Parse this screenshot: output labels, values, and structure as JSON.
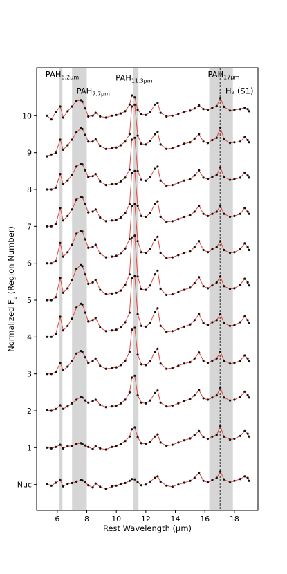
{
  "chart_data": {
    "type": "line",
    "xlabel": "Rest Wavelength (μm)",
    "ylabel_main": "Normalized F",
    "ylabel_sub": "ν",
    "ylabel_rest": " (Region Number)",
    "xlim": [
      4.6,
      19.6
    ],
    "ylim": [
      -0.7,
      11.3
    ],
    "xticks": [
      6,
      8,
      10,
      12,
      14,
      16,
      18
    ],
    "yticks": [
      {
        "value": 0,
        "label": "Nuc"
      },
      {
        "value": 1,
        "label": "1"
      },
      {
        "value": 2,
        "label": "2"
      },
      {
        "value": 3,
        "label": "3"
      },
      {
        "value": 4,
        "label": "4"
      },
      {
        "value": 5,
        "label": "5"
      },
      {
        "value": 6,
        "label": "6"
      },
      {
        "value": 7,
        "label": "7"
      },
      {
        "value": 8,
        "label": "8"
      },
      {
        "value": 9,
        "label": "9"
      },
      {
        "value": 10,
        "label": "10"
      }
    ],
    "bands": [
      {
        "main": "PAH",
        "sub": "6.2μm",
        "x0": 6.1,
        "x1": 6.35,
        "label_x": 5.2,
        "label_y": 11.05
      },
      {
        "main": "PAH",
        "sub": "7.7μm",
        "x0": 7.0,
        "x1": 8.0,
        "label_x": 7.3,
        "label_y": 10.6
      },
      {
        "main": "PAH",
        "sub": "11.3μm",
        "x0": 11.15,
        "x1": 11.5,
        "label_x": 9.95,
        "label_y": 10.95
      },
      {
        "main": "PAH",
        "sub": "17μm",
        "x0": 16.3,
        "x1": 17.9,
        "label_x": 16.2,
        "label_y": 11.05
      }
    ],
    "vline": {
      "x": 17.03,
      "label": "H₂ (S1)",
      "label_x": 17.3,
      "label_y": 10.6
    },
    "series": [
      {
        "x": [
          5.3,
          5.6,
          5.9,
          6.2,
          6.4,
          6.7,
          7.0,
          7.3,
          7.6,
          7.7,
          7.9,
          8.1,
          8.4,
          8.6,
          8.9,
          9.3,
          9.7,
          10.0,
          10.3,
          10.6,
          10.9,
          11.05,
          11.25,
          11.45,
          11.7,
          12.0,
          12.3,
          12.6,
          12.8,
          13.0,
          13.4,
          13.8,
          14.2,
          14.6,
          15.0,
          15.3,
          15.6,
          15.9,
          16.2,
          16.5,
          16.8,
          17.05,
          17.3,
          17.7,
          18.0,
          18.4,
          18.7,
          18.9,
          19.0
        ],
        "y": [
          0.02,
          -0.03,
          0.05,
          0.12,
          -0.05,
          0.02,
          0.04,
          0.08,
          0.12,
          0.11,
          0.06,
          -0.02,
          -0.08,
          0.03,
          -0.06,
          -0.12,
          -0.05,
          -0.03,
          0.02,
          0.04,
          0.1,
          0.15,
          0.14,
          0.06,
          -0.02,
          0.0,
          0.08,
          0.18,
          0.22,
          0.08,
          -0.03,
          -0.06,
          0.0,
          0.05,
          0.1,
          0.18,
          0.32,
          0.1,
          0.06,
          0.12,
          0.18,
          0.35,
          0.14,
          0.06,
          0.1,
          0.15,
          0.22,
          0.18,
          0.1
        ]
      },
      {
        "x": [
          5.3,
          5.6,
          5.9,
          6.2,
          6.4,
          6.7,
          7.0,
          7.3,
          7.6,
          7.7,
          7.9,
          8.1,
          8.4,
          8.6,
          8.9,
          9.3,
          9.7,
          10.0,
          10.3,
          10.6,
          10.9,
          11.05,
          11.25,
          11.45,
          11.7,
          12.0,
          12.3,
          12.6,
          12.8,
          13.0,
          13.4,
          13.8,
          14.2,
          14.6,
          15.0,
          15.3,
          15.6,
          15.9,
          16.2,
          16.5,
          16.8,
          17.05,
          17.3,
          17.7,
          18.0,
          18.4,
          18.7,
          18.9,
          19.0
        ],
        "y": [
          0.0,
          -0.02,
          0.02,
          0.08,
          -0.02,
          0.04,
          0.05,
          0.1,
          0.12,
          0.1,
          0.06,
          0.02,
          -0.04,
          0.04,
          -0.02,
          -0.05,
          0.02,
          0.05,
          0.1,
          0.18,
          0.3,
          0.5,
          0.55,
          0.28,
          0.12,
          0.1,
          0.16,
          0.3,
          0.36,
          0.14,
          0.05,
          0.08,
          0.14,
          0.2,
          0.25,
          0.35,
          0.45,
          0.28,
          0.24,
          0.3,
          0.35,
          0.58,
          0.3,
          0.22,
          0.24,
          0.32,
          0.45,
          0.38,
          0.3
        ]
      },
      {
        "x": [
          5.3,
          5.6,
          5.9,
          6.2,
          6.4,
          6.7,
          7.0,
          7.3,
          7.6,
          7.7,
          7.9,
          8.1,
          8.4,
          8.6,
          8.9,
          9.3,
          9.7,
          10.0,
          10.3,
          10.6,
          10.9,
          11.05,
          11.25,
          11.45,
          11.7,
          12.0,
          12.3,
          12.6,
          12.8,
          13.0,
          13.4,
          13.8,
          14.2,
          14.6,
          15.0,
          15.3,
          15.6,
          15.9,
          16.2,
          16.5,
          16.8,
          17.05,
          17.3,
          17.7,
          18.0,
          18.4,
          18.7,
          18.9,
          19.0
        ],
        "y": [
          0.02,
          0.0,
          0.05,
          0.15,
          0.05,
          0.12,
          0.2,
          0.3,
          0.38,
          0.36,
          0.28,
          0.22,
          0.26,
          0.3,
          0.16,
          0.1,
          0.12,
          0.14,
          0.2,
          0.3,
          0.5,
          0.9,
          0.95,
          0.42,
          0.22,
          0.2,
          0.28,
          0.48,
          0.55,
          0.22,
          0.12,
          0.14,
          0.2,
          0.26,
          0.32,
          0.42,
          0.56,
          0.34,
          0.3,
          0.36,
          0.42,
          0.62,
          0.36,
          0.28,
          0.3,
          0.38,
          0.52,
          0.42,
          0.36
        ]
      },
      {
        "x": [
          5.3,
          5.6,
          5.9,
          6.2,
          6.4,
          6.7,
          7.0,
          7.3,
          7.6,
          7.7,
          7.9,
          8.1,
          8.4,
          8.6,
          8.9,
          9.3,
          9.7,
          10.0,
          10.3,
          10.6,
          10.9,
          11.05,
          11.25,
          11.45,
          11.7,
          12.0,
          12.3,
          12.6,
          12.8,
          13.0,
          13.4,
          13.8,
          14.2,
          14.6,
          15.0,
          15.3,
          15.6,
          15.9,
          16.2,
          16.5,
          16.8,
          17.05,
          17.3,
          17.7,
          18.0,
          18.4,
          18.7,
          18.9,
          19.0
        ],
        "y": [
          0.0,
          0.0,
          0.05,
          0.3,
          0.1,
          0.2,
          0.35,
          0.55,
          0.62,
          0.6,
          0.45,
          0.3,
          0.35,
          0.42,
          0.22,
          0.14,
          0.16,
          0.18,
          0.24,
          0.36,
          0.6,
          1.2,
          1.25,
          0.52,
          0.26,
          0.24,
          0.34,
          0.6,
          0.68,
          0.28,
          0.14,
          0.16,
          0.22,
          0.28,
          0.32,
          0.42,
          0.58,
          0.36,
          0.3,
          0.36,
          0.42,
          0.6,
          0.36,
          0.28,
          0.3,
          0.36,
          0.5,
          0.42,
          0.34
        ]
      },
      {
        "x": [
          5.3,
          5.6,
          5.9,
          6.2,
          6.4,
          6.7,
          7.0,
          7.3,
          7.6,
          7.7,
          7.9,
          8.1,
          8.4,
          8.6,
          8.9,
          9.3,
          9.7,
          10.0,
          10.3,
          10.6,
          10.9,
          11.05,
          11.25,
          11.45,
          11.7,
          12.0,
          12.3,
          12.6,
          12.8,
          13.0,
          13.4,
          13.8,
          14.2,
          14.6,
          15.0,
          15.3,
          15.6,
          15.9,
          16.2,
          16.5,
          16.8,
          17.05,
          17.3,
          17.7,
          18.0,
          18.4,
          18.7,
          18.9,
          19.0
        ],
        "y": [
          0.0,
          0.0,
          0.08,
          0.55,
          0.18,
          0.3,
          0.5,
          0.8,
          0.9,
          0.88,
          0.66,
          0.42,
          0.46,
          0.52,
          0.26,
          0.16,
          0.18,
          0.2,
          0.26,
          0.4,
          0.66,
          1.6,
          1.65,
          0.62,
          0.3,
          0.28,
          0.38,
          0.68,
          0.78,
          0.3,
          0.14,
          0.16,
          0.22,
          0.28,
          0.34,
          0.46,
          0.62,
          0.38,
          0.32,
          0.4,
          0.46,
          0.62,
          0.38,
          0.3,
          0.32,
          0.4,
          0.56,
          0.46,
          0.38
        ]
      },
      {
        "x": [
          5.3,
          5.6,
          5.9,
          6.2,
          6.4,
          6.7,
          7.0,
          7.3,
          7.6,
          7.7,
          7.9,
          8.1,
          8.4,
          8.6,
          8.9,
          9.3,
          9.7,
          10.0,
          10.3,
          10.6,
          10.9,
          11.05,
          11.25,
          11.45,
          11.7,
          12.0,
          12.3,
          12.6,
          12.8,
          13.0,
          13.4,
          13.8,
          14.2,
          14.6,
          15.0,
          15.3,
          15.6,
          15.9,
          16.2,
          16.5,
          16.8,
          17.05,
          17.3,
          17.7,
          18.0,
          18.4,
          18.7,
          18.9,
          19.0
        ],
        "y": [
          0.0,
          0.0,
          0.08,
          0.6,
          0.2,
          0.32,
          0.55,
          0.85,
          0.95,
          0.92,
          0.7,
          0.44,
          0.48,
          0.55,
          0.28,
          0.16,
          0.18,
          0.2,
          0.26,
          0.42,
          0.7,
          1.7,
          1.75,
          0.64,
          0.3,
          0.28,
          0.4,
          0.7,
          0.8,
          0.3,
          0.14,
          0.16,
          0.22,
          0.28,
          0.34,
          0.46,
          0.62,
          0.38,
          0.32,
          0.4,
          0.48,
          0.64,
          0.38,
          0.3,
          0.32,
          0.42,
          0.58,
          0.48,
          0.4
        ]
      },
      {
        "x": [
          5.3,
          5.6,
          5.9,
          6.2,
          6.4,
          6.7,
          7.0,
          7.3,
          7.6,
          7.7,
          7.9,
          8.1,
          8.4,
          8.6,
          8.9,
          9.3,
          9.7,
          10.0,
          10.3,
          10.6,
          10.9,
          11.05,
          11.25,
          11.45,
          11.7,
          12.0,
          12.3,
          12.6,
          12.8,
          13.0,
          13.4,
          13.8,
          14.2,
          14.6,
          15.0,
          15.3,
          15.6,
          15.9,
          16.2,
          16.5,
          16.8,
          17.05,
          17.3,
          17.7,
          18.0,
          18.4,
          18.7,
          18.9,
          19.0
        ],
        "y": [
          0.0,
          0.0,
          0.06,
          0.55,
          0.18,
          0.3,
          0.5,
          0.8,
          0.88,
          0.86,
          0.65,
          0.42,
          0.45,
          0.5,
          0.26,
          0.16,
          0.18,
          0.2,
          0.26,
          0.4,
          0.66,
          1.55,
          1.6,
          0.6,
          0.3,
          0.28,
          0.38,
          0.64,
          0.72,
          0.28,
          0.14,
          0.16,
          0.22,
          0.28,
          0.32,
          0.44,
          0.6,
          0.36,
          0.3,
          0.38,
          0.44,
          0.6,
          0.36,
          0.28,
          0.3,
          0.38,
          0.54,
          0.44,
          0.36
        ]
      },
      {
        "x": [
          5.3,
          5.6,
          5.9,
          6.2,
          6.4,
          6.7,
          7.0,
          7.3,
          7.6,
          7.7,
          7.9,
          8.1,
          8.4,
          8.6,
          8.9,
          9.3,
          9.7,
          10.0,
          10.3,
          10.6,
          10.9,
          11.05,
          11.25,
          11.45,
          11.7,
          12.0,
          12.3,
          12.6,
          12.8,
          13.0,
          13.4,
          13.8,
          14.2,
          14.6,
          15.0,
          15.3,
          15.6,
          15.9,
          16.2,
          16.5,
          16.8,
          17.05,
          17.3,
          17.7,
          18.0,
          18.4,
          18.7,
          18.9,
          19.0
        ],
        "y": [
          0.0,
          0.0,
          0.06,
          0.5,
          0.16,
          0.28,
          0.46,
          0.72,
          0.8,
          0.78,
          0.6,
          0.38,
          0.4,
          0.46,
          0.24,
          0.14,
          0.16,
          0.18,
          0.24,
          0.36,
          0.6,
          1.45,
          1.5,
          0.56,
          0.28,
          0.26,
          0.36,
          0.6,
          0.68,
          0.26,
          0.12,
          0.14,
          0.2,
          0.26,
          0.3,
          0.4,
          0.56,
          0.34,
          0.28,
          0.34,
          0.4,
          0.56,
          0.34,
          0.26,
          0.28,
          0.34,
          0.5,
          0.4,
          0.34
        ]
      },
      {
        "x": [
          5.3,
          5.6,
          5.9,
          6.2,
          6.4,
          6.7,
          7.0,
          7.3,
          7.6,
          7.7,
          7.9,
          8.1,
          8.4,
          8.6,
          8.9,
          9.3,
          9.7,
          10.0,
          10.3,
          10.6,
          10.9,
          11.05,
          11.25,
          11.45,
          11.7,
          12.0,
          12.3,
          12.6,
          12.8,
          13.0,
          13.4,
          13.8,
          14.2,
          14.6,
          15.0,
          15.3,
          15.6,
          15.9,
          16.2,
          16.5,
          16.8,
          17.05,
          17.3,
          17.7,
          18.0,
          18.4,
          18.7,
          18.9,
          19.0
        ],
        "y": [
          0.0,
          0.0,
          0.05,
          0.42,
          0.14,
          0.24,
          0.4,
          0.62,
          0.7,
          0.68,
          0.52,
          0.34,
          0.36,
          0.42,
          0.22,
          0.12,
          0.14,
          0.16,
          0.22,
          0.32,
          0.54,
          1.35,
          1.4,
          0.5,
          0.26,
          0.24,
          0.34,
          0.56,
          0.62,
          0.24,
          0.1,
          0.12,
          0.18,
          0.24,
          0.28,
          0.38,
          0.52,
          0.32,
          0.28,
          0.34,
          0.4,
          0.6,
          0.34,
          0.26,
          0.28,
          0.32,
          0.46,
          0.38,
          0.32
        ]
      },
      {
        "x": [
          5.3,
          5.6,
          5.9,
          6.2,
          6.4,
          6.7,
          7.0,
          7.3,
          7.6,
          7.7,
          7.9,
          8.1,
          8.4,
          8.6,
          8.9,
          9.3,
          9.7,
          10.0,
          10.3,
          10.6,
          10.9,
          11.05,
          11.25,
          11.45,
          11.7,
          12.0,
          12.3,
          12.6,
          12.8,
          13.0,
          13.4,
          13.8,
          14.2,
          14.6,
          15.0,
          15.3,
          15.6,
          15.9,
          16.2,
          16.5,
          16.8,
          17.05,
          17.3,
          17.7,
          18.0,
          18.4,
          18.7,
          18.9,
          19.0
        ],
        "y": [
          -0.1,
          -0.05,
          0.0,
          0.35,
          0.08,
          0.2,
          0.35,
          0.55,
          0.66,
          0.64,
          0.48,
          0.3,
          0.3,
          0.36,
          0.18,
          0.1,
          0.12,
          0.14,
          0.2,
          0.3,
          0.5,
          1.25,
          1.3,
          0.46,
          0.24,
          0.22,
          0.32,
          0.5,
          0.56,
          0.22,
          0.1,
          0.12,
          0.18,
          0.24,
          0.28,
          0.38,
          0.5,
          0.3,
          0.26,
          0.34,
          0.4,
          0.68,
          0.36,
          0.26,
          0.28,
          0.3,
          0.42,
          0.34,
          0.28
        ]
      },
      {
        "x": [
          5.3,
          5.6,
          5.9,
          6.2,
          6.4,
          6.7,
          7.0,
          7.3,
          7.6,
          7.7,
          7.9,
          8.1,
          8.4,
          8.6,
          8.9,
          9.3,
          9.7,
          10.0,
          10.3,
          10.6,
          10.9,
          11.05,
          11.25,
          11.45,
          11.7,
          12.0,
          12.3,
          12.6,
          12.8,
          13.0,
          13.4,
          13.8,
          14.2,
          14.6,
          15.0,
          15.3,
          15.6,
          15.9,
          16.2,
          16.5,
          16.8,
          17.05,
          17.3,
          17.7,
          18.0,
          18.4,
          18.7,
          18.9,
          19.0
        ],
        "y": [
          0.0,
          -0.1,
          0.1,
          0.25,
          -0.05,
          0.12,
          0.25,
          0.4,
          0.42,
          0.38,
          0.2,
          -0.02,
          0.0,
          0.08,
          -0.02,
          -0.05,
          0.0,
          0.02,
          0.06,
          0.12,
          0.3,
          0.55,
          0.5,
          0.16,
          0.04,
          0.02,
          0.1,
          0.3,
          0.35,
          0.08,
          -0.02,
          0.0,
          0.05,
          0.1,
          0.14,
          0.2,
          0.28,
          0.18,
          0.16,
          0.22,
          0.26,
          0.48,
          0.24,
          0.14,
          0.16,
          0.18,
          0.22,
          0.18,
          0.12
        ]
      }
    ],
    "colors": {
      "fit": "#e8463c",
      "data": "#111111",
      "band": "#d6d6d6"
    }
  }
}
